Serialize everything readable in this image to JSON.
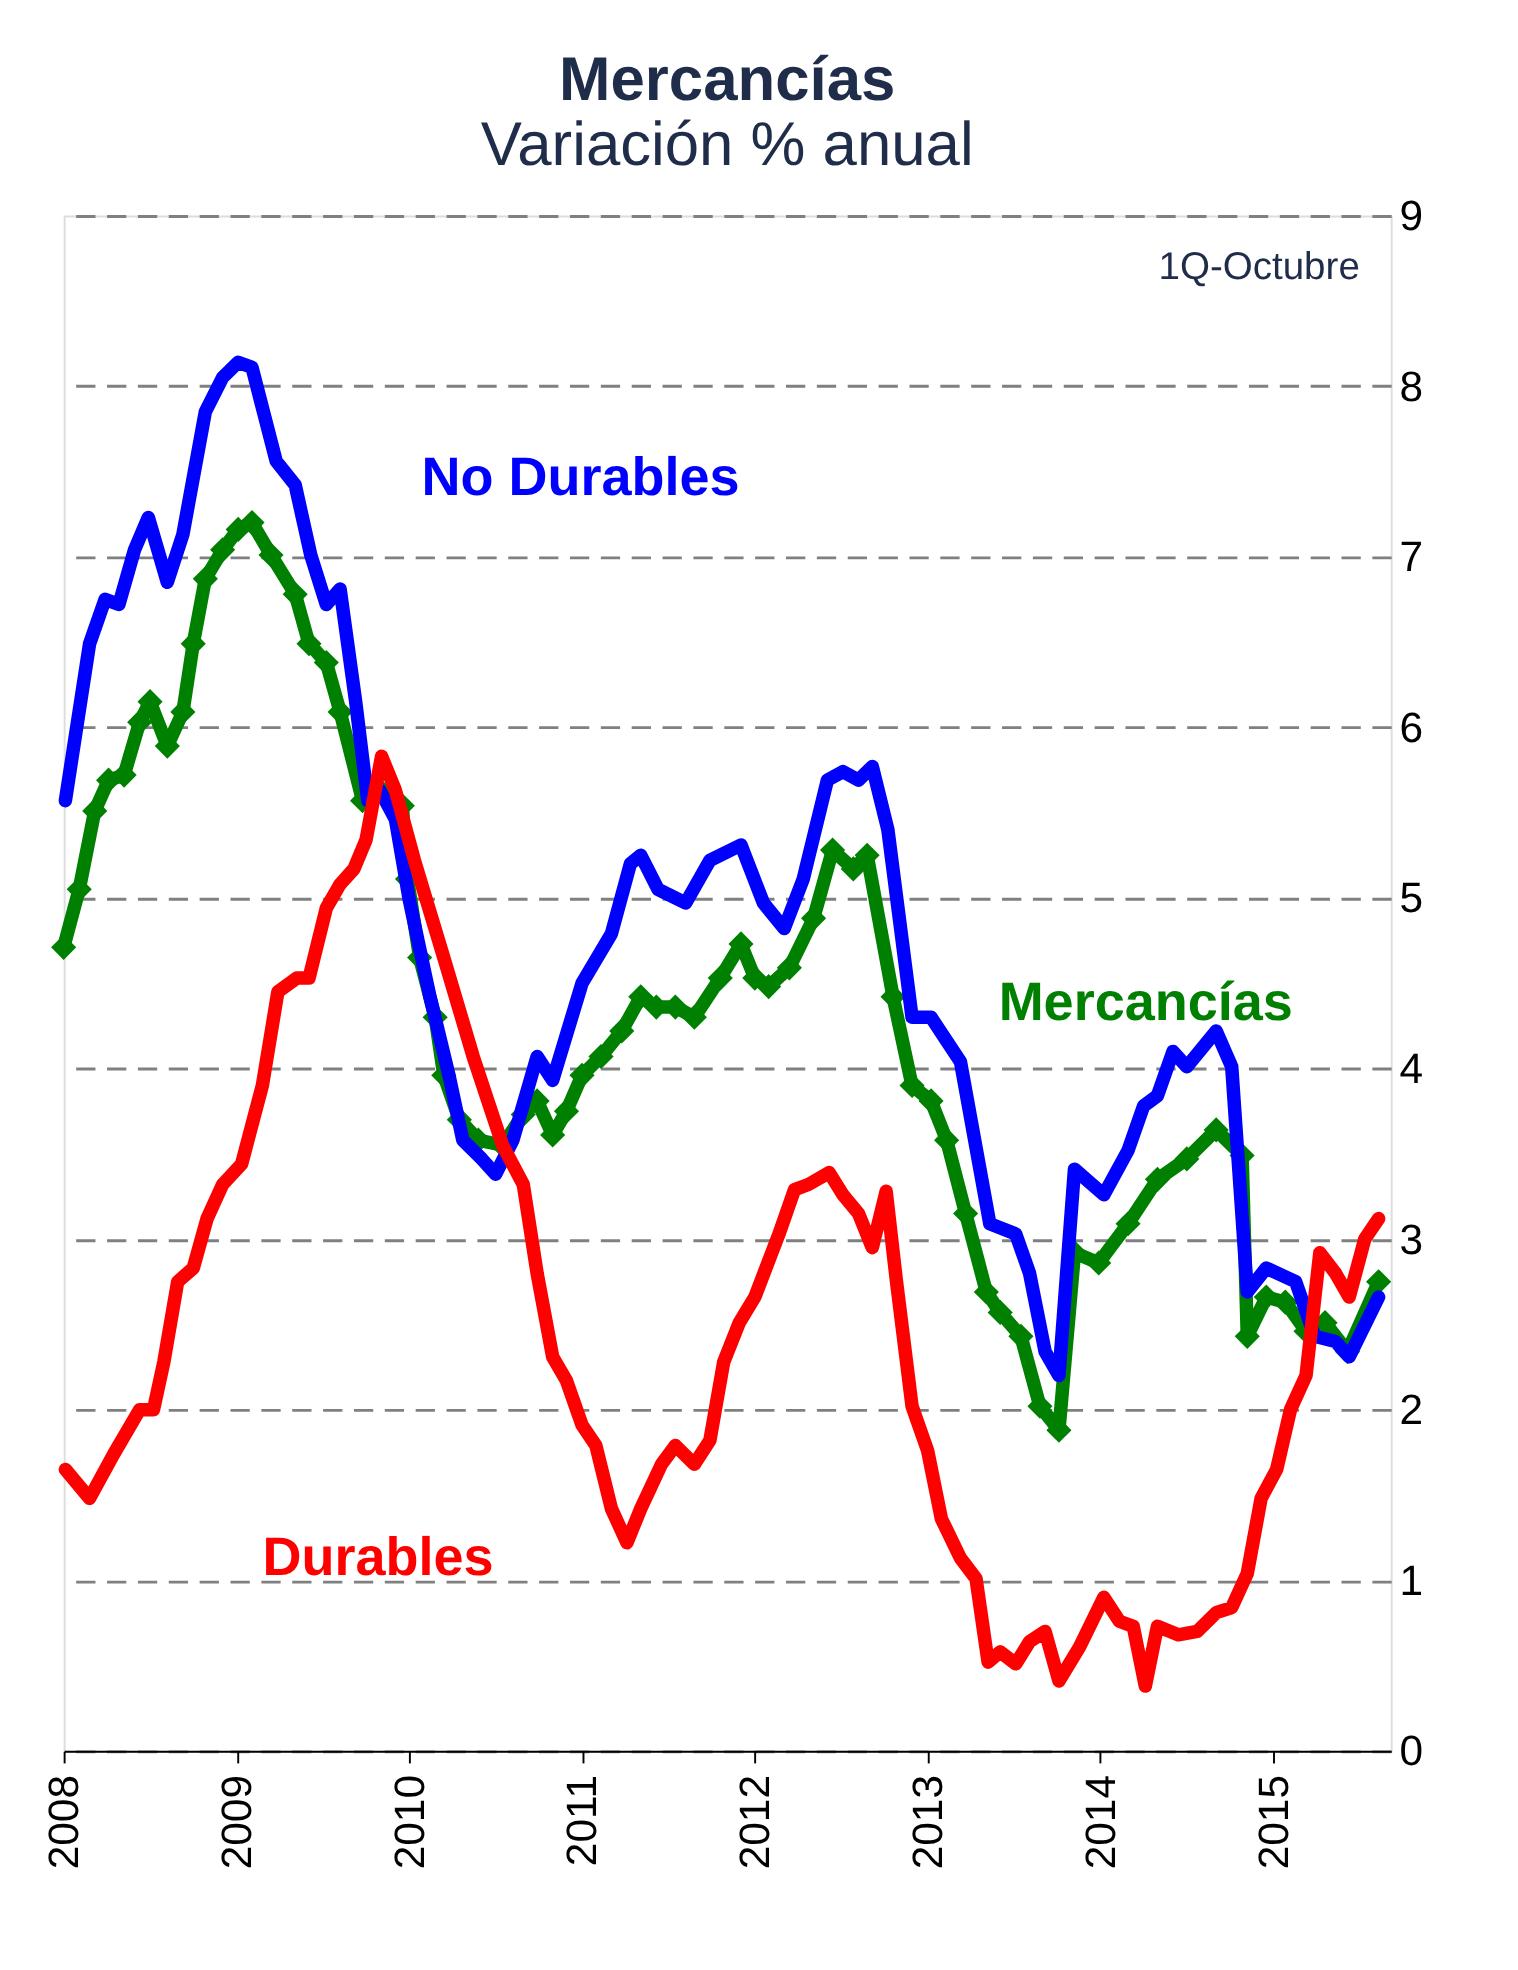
{
  "chart_data": {
    "type": "line",
    "title": "Mercancías",
    "subtitle": "Variación % anual",
    "annotations": [
      "1Q-Octubre"
    ],
    "xlim": [
      2008,
      2015.68
    ],
    "xticks": [
      2008,
      2009,
      2010,
      2011,
      2012,
      2013,
      2014,
      2015
    ],
    "ylim": [
      0,
      9
    ],
    "yticks": [
      0,
      1,
      2,
      3,
      4,
      5,
      6,
      7,
      8,
      9
    ],
    "grid": "y",
    "legend": false,
    "line_style": "solid",
    "series": [
      {
        "name": "Mercancías",
        "color": "#008000",
        "marker": "diamond",
        "x": [
          2008.0,
          2008.09,
          2008.18,
          2008.26,
          2008.35,
          2008.44,
          2008.5,
          2008.6,
          2008.69,
          2008.75,
          2008.82,
          2008.92,
          2009.01,
          2009.09,
          2009.2,
          2009.34,
          2009.42,
          2009.52,
          2009.6,
          2009.73,
          2009.83,
          2009.96,
          2009.99,
          2010.06,
          2010.15,
          2010.2,
          2010.29,
          2010.4,
          2010.54,
          2010.66,
          2010.74,
          2010.83,
          2010.91,
          2011.0,
          2011.11,
          2011.23,
          2011.34,
          2011.43,
          2011.54,
          2011.65,
          2011.8,
          2011.92,
          2012.0,
          2012.08,
          2012.2,
          2012.34,
          2012.45,
          2012.57,
          2012.65,
          2012.8,
          2012.91,
          2013.02,
          2013.11,
          2013.22,
          2013.34,
          2013.42,
          2013.54,
          2013.65,
          2013.76,
          2013.85,
          2013.99,
          2014.16,
          2014.33,
          2014.5,
          2014.67,
          2014.82,
          2014.85,
          2014.96,
          2015.07,
          2015.19,
          2015.3,
          2015.43,
          2015.61
        ],
        "values": [
          4.71,
          5.05,
          5.51,
          5.69,
          5.72,
          6.03,
          6.15,
          5.89,
          6.09,
          6.49,
          6.87,
          7.04,
          7.16,
          7.2,
          7.01,
          6.78,
          6.49,
          6.38,
          6.09,
          5.57,
          5.63,
          5.54,
          5.11,
          4.65,
          4.3,
          3.96,
          3.7,
          3.58,
          3.55,
          3.73,
          3.81,
          3.61,
          3.75,
          3.96,
          4.07,
          4.22,
          4.42,
          4.36,
          4.36,
          4.3,
          4.53,
          4.73,
          4.53,
          4.48,
          4.59,
          4.88,
          5.28,
          5.17,
          5.25,
          4.42,
          3.9,
          3.81,
          3.58,
          3.15,
          2.69,
          2.57,
          2.43,
          2.02,
          1.88,
          2.92,
          2.86,
          3.09,
          3.35,
          3.47,
          3.64,
          3.49,
          2.43,
          2.66,
          2.63,
          2.46,
          2.51,
          2.34,
          2.75
        ]
      },
      {
        "name": "No Durables",
        "color": "#0000ff",
        "marker": "none",
        "x": [
          2008.01,
          2008.15,
          2008.24,
          2008.32,
          2008.41,
          2008.49,
          2008.6,
          2008.69,
          2008.82,
          2008.92,
          2009.01,
          2009.09,
          2009.23,
          2009.34,
          2009.43,
          2009.52,
          2009.6,
          2009.69,
          2009.76,
          2009.83,
          2009.92,
          2010.0,
          2010.12,
          2010.23,
          2010.31,
          2010.42,
          2010.5,
          2010.6,
          2010.74,
          2010.83,
          2011.0,
          2011.17,
          2011.28,
          2011.34,
          2011.44,
          2011.6,
          2011.74,
          2011.92,
          2012.05,
          2012.17,
          2012.28,
          2012.42,
          2012.51,
          2012.6,
          2012.68,
          2012.77,
          2012.91,
          2013.02,
          2013.19,
          2013.36,
          2013.51,
          2013.59,
          2013.68,
          2013.76,
          2013.85,
          2014.02,
          2014.16,
          2014.25,
          2014.33,
          2014.42,
          2014.5,
          2014.67,
          2014.76,
          2014.85,
          2014.96,
          2015.13,
          2015.24,
          2015.36,
          2015.44,
          2015.61
        ],
        "values": [
          5.57,
          6.49,
          6.75,
          6.72,
          7.04,
          7.23,
          6.85,
          7.13,
          7.85,
          8.05,
          8.14,
          8.11,
          7.56,
          7.42,
          7.01,
          6.72,
          6.81,
          6.15,
          5.57,
          5.63,
          5.46,
          4.99,
          4.42,
          3.96,
          3.58,
          3.47,
          3.38,
          3.58,
          4.07,
          3.93,
          4.5,
          4.79,
          5.2,
          5.25,
          5.05,
          4.97,
          5.22,
          5.31,
          4.97,
          4.82,
          5.11,
          5.69,
          5.74,
          5.69,
          5.77,
          5.4,
          4.3,
          4.3,
          4.04,
          3.09,
          3.03,
          2.8,
          2.34,
          2.2,
          3.41,
          3.26,
          3.52,
          3.78,
          3.84,
          4.1,
          4.01,
          4.22,
          4.01,
          2.69,
          2.83,
          2.75,
          2.43,
          2.4,
          2.31,
          2.66
        ]
      },
      {
        "name": "Durables",
        "color": "#ff0000",
        "marker": "none",
        "x": [
          2008.01,
          2008.15,
          2008.29,
          2008.44,
          2008.52,
          2008.58,
          2008.66,
          2008.75,
          2008.83,
          2008.92,
          2009.03,
          2009.15,
          2009.24,
          2009.35,
          2009.42,
          2009.52,
          2009.6,
          2009.68,
          2009.75,
          2009.84,
          2009.92,
          2010.03,
          2010.2,
          2010.37,
          2010.54,
          2010.66,
          2010.74,
          2010.83,
          2010.91,
          2011.0,
          2011.08,
          2011.17,
          2011.26,
          2011.34,
          2011.46,
          2011.54,
          2011.65,
          2011.74,
          2011.82,
          2011.91,
          2012.0,
          2012.14,
          2012.23,
          2012.31,
          2012.43,
          2012.51,
          2012.6,
          2012.68,
          2012.76,
          2012.82,
          2012.91,
          2013.0,
          2013.08,
          2013.19,
          2013.28,
          2013.35,
          2013.42,
          2013.51,
          2013.59,
          2013.68,
          2013.76,
          2013.88,
          2014.02,
          2014.11,
          2014.19,
          2014.26,
          2014.33,
          2014.45,
          2014.56,
          2014.67,
          2014.76,
          2014.85,
          2014.93,
          2015.02,
          2015.1,
          2015.19,
          2015.27,
          2015.36,
          2015.44,
          2015.53,
          2015.61
        ],
        "values": [
          1.65,
          1.48,
          1.74,
          2.0,
          2.0,
          2.28,
          2.75,
          2.83,
          3.12,
          3.32,
          3.44,
          3.9,
          4.45,
          4.53,
          4.53,
          4.94,
          5.08,
          5.17,
          5.34,
          5.83,
          5.63,
          5.22,
          4.65,
          4.07,
          3.55,
          3.32,
          2.8,
          2.31,
          2.17,
          1.91,
          1.79,
          1.42,
          1.22,
          1.42,
          1.68,
          1.79,
          1.68,
          1.82,
          2.28,
          2.51,
          2.66,
          3.03,
          3.29,
          3.32,
          3.39,
          3.26,
          3.15,
          2.95,
          3.28,
          2.75,
          2.02,
          1.76,
          1.36,
          1.13,
          1.01,
          0.52,
          0.58,
          0.51,
          0.64,
          0.7,
          0.41,
          0.61,
          0.9,
          0.76,
          0.73,
          0.38,
          0.73,
          0.68,
          0.7,
          0.81,
          0.84,
          1.04,
          1.48,
          1.65,
          2.0,
          2.2,
          2.92,
          2.8,
          2.66,
          3.0,
          3.12
        ]
      }
    ]
  }
}
